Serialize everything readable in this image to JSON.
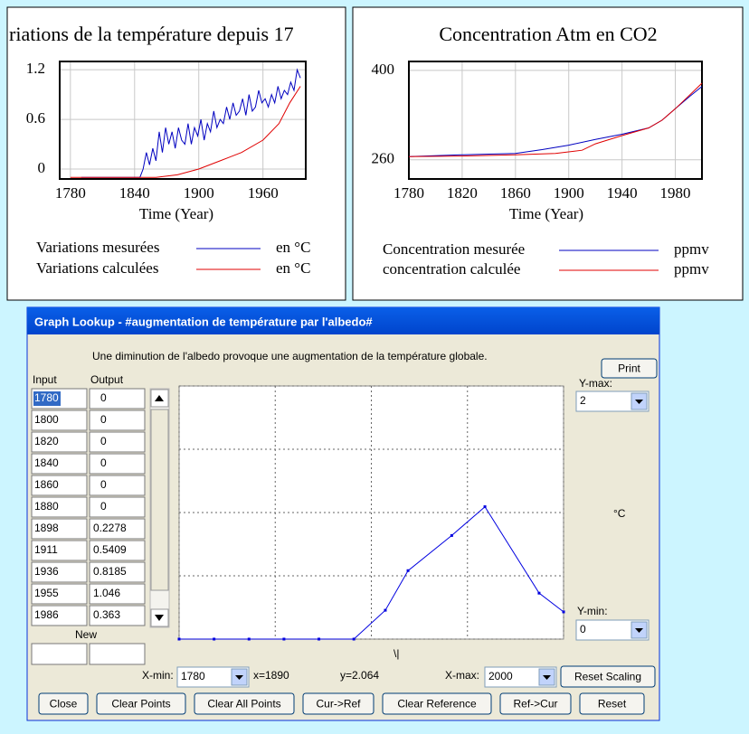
{
  "chart_data": [
    {
      "type": "line",
      "title": "riations de la température depuis 17",
      "x_label": "Time (Year)",
      "xlim": [
        1770,
        2000
      ],
      "xticks": [
        1780,
        1840,
        1900,
        1960
      ],
      "ylim": [
        -0.12,
        1.3
      ],
      "yticks": [
        0,
        0.6,
        1.2
      ],
      "grid": true,
      "series": [
        {
          "name": "Variations mesurées",
          "unit": "en °C",
          "color": "#0000c0",
          "x": [
            1790,
            1845,
            1848,
            1851,
            1854,
            1857,
            1860,
            1863,
            1866,
            1869,
            1872,
            1875,
            1878,
            1881,
            1884,
            1887,
            1890,
            1893,
            1896,
            1899,
            1902,
            1905,
            1908,
            1911,
            1914,
            1917,
            1920,
            1923,
            1926,
            1929,
            1932,
            1935,
            1938,
            1941,
            1944,
            1947,
            1950,
            1953,
            1956,
            1959,
            1962,
            1965,
            1968,
            1971,
            1974,
            1977,
            1980,
            1983,
            1986,
            1989,
            1992,
            1995
          ],
          "values": [
            -0.1,
            -0.1,
            0,
            0.2,
            0.05,
            0.25,
            0.1,
            0.45,
            0.2,
            0.5,
            0.3,
            0.45,
            0.25,
            0.5,
            0.35,
            0.3,
            0.55,
            0.3,
            0.5,
            0.4,
            0.6,
            0.35,
            0.55,
            0.45,
            0.7,
            0.5,
            0.6,
            0.55,
            0.75,
            0.6,
            0.8,
            0.65,
            0.7,
            0.85,
            0.65,
            0.9,
            0.7,
            0.75,
            0.95,
            0.8,
            0.85,
            0.75,
            0.9,
            0.8,
            1.0,
            0.85,
            0.95,
            0.9,
            1.05,
            0.95,
            1.2,
            1.1
          ]
        },
        {
          "name": "Variations calculées",
          "unit": "en °C",
          "color": "#e00000",
          "x": [
            1780,
            1860,
            1880,
            1900,
            1920,
            1940,
            1960,
            1975,
            1985,
            1995
          ],
          "values": [
            -0.1,
            -0.1,
            -0.07,
            0.0,
            0.1,
            0.2,
            0.35,
            0.55,
            0.8,
            1.0
          ]
        }
      ]
    },
    {
      "type": "line",
      "title": "Concentration Atm en CO2",
      "x_label": "Time (Year)",
      "xlim": [
        1780,
        2000
      ],
      "xticks": [
        1780,
        1820,
        1860,
        1900,
        1940,
        1980
      ],
      "ylim": [
        230,
        414
      ],
      "yticks": [
        260,
        400
      ],
      "grid": true,
      "series": [
        {
          "name": "Concentration mesurée",
          "unit": "ppmv",
          "color": "#0000c0",
          "x": [
            1780,
            1820,
            1860,
            1880,
            1900,
            1920,
            1940,
            1960,
            1970,
            1980,
            1990,
            2000
          ],
          "values": [
            265,
            268,
            270,
            276,
            283,
            292,
            300,
            310,
            322,
            340,
            358,
            375
          ]
        },
        {
          "name": "concentration calculée",
          "unit": "ppmv",
          "color": "#e00000",
          "x": [
            1780,
            1820,
            1860,
            1890,
            1910,
            1920,
            1940,
            1960,
            1970,
            1980,
            1990,
            2000
          ],
          "values": [
            265,
            266,
            268,
            270,
            275,
            285,
            298,
            310,
            322,
            340,
            360,
            380
          ]
        }
      ]
    },
    {
      "type": "line",
      "color": "#0000e0",
      "xlim": [
        1780,
        2000
      ],
      "xticks": [
        1780,
        1835,
        1890,
        1945,
        2000
      ],
      "ylim": [
        0,
        2
      ],
      "yticks": [
        0,
        0.5,
        1,
        1.5,
        2
      ],
      "grid": true,
      "x": [
        1780,
        1800,
        1820,
        1840,
        1860,
        1880,
        1898,
        1911,
        1936,
        1955,
        1986,
        2000
      ],
      "values": [
        0,
        0,
        0,
        0,
        0,
        0,
        0.2278,
        0.5409,
        0.8185,
        1.046,
        0.363,
        0.215
      ]
    }
  ],
  "dialog": {
    "title": "Graph Lookup - #augmentation de température par l'albedo#",
    "description": "Une diminution de l'albedo provoque une augmentation de la température globale.",
    "print": "Print",
    "input_header": "Input",
    "output_header": "Output",
    "new_label": "New",
    "ymax_label": "Y-max:",
    "ymin_label": "Y-min:",
    "unit": "°C",
    "xmin_label": "X-min:",
    "xmax_label": "X-max:",
    "cursor_x": "x=1890",
    "cursor_y": "y=2.064",
    "reset_scaling": "Reset Scaling",
    "buttons": [
      "Close",
      "Clear Points",
      "Clear All Points",
      "Cur->Ref",
      "Clear Reference",
      "Ref->Cur",
      "Reset"
    ]
  }
}
